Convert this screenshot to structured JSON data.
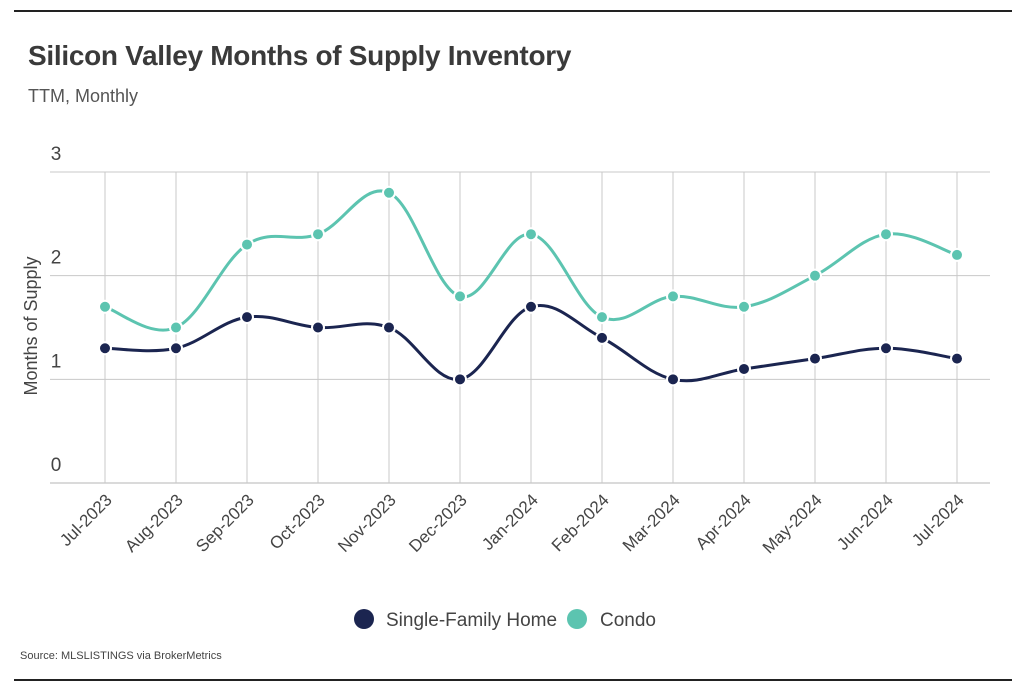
{
  "header": {
    "title": "Silicon Valley Months of Supply Inventory",
    "subtitle": "TTM, Monthly"
  },
  "footer": {
    "source": "Source:  MLSLISTINGS via BrokerMetrics"
  },
  "chart_data": {
    "type": "line",
    "title": "Silicon Valley Months of Supply Inventory",
    "subtitle": "TTM, Monthly",
    "xlabel": "",
    "ylabel": "Months of Supply",
    "ylim": [
      0,
      3
    ],
    "yticks": [
      0,
      1,
      2,
      3
    ],
    "grid": true,
    "legend_position": "bottom-center",
    "categories": [
      "Jul-2023",
      "Aug-2023",
      "Sep-2023",
      "Oct-2023",
      "Nov-2023",
      "Dec-2023",
      "Jan-2024",
      "Feb-2024",
      "Mar-2024",
      "Apr-2024",
      "May-2024",
      "Jun-2024",
      "Jul-2024"
    ],
    "series": [
      {
        "name": "Single-Family Home",
        "color": "#1b2550",
        "values": [
          1.3,
          1.3,
          1.6,
          1.5,
          1.5,
          1.0,
          1.7,
          1.4,
          1.0,
          1.1,
          1.2,
          1.3,
          1.2
        ]
      },
      {
        "name": "Condo",
        "color": "#5cc4b0",
        "values": [
          1.7,
          1.5,
          2.3,
          2.4,
          2.8,
          1.8,
          2.4,
          1.6,
          1.8,
          1.7,
          2.0,
          2.4,
          2.2
        ]
      }
    ]
  }
}
